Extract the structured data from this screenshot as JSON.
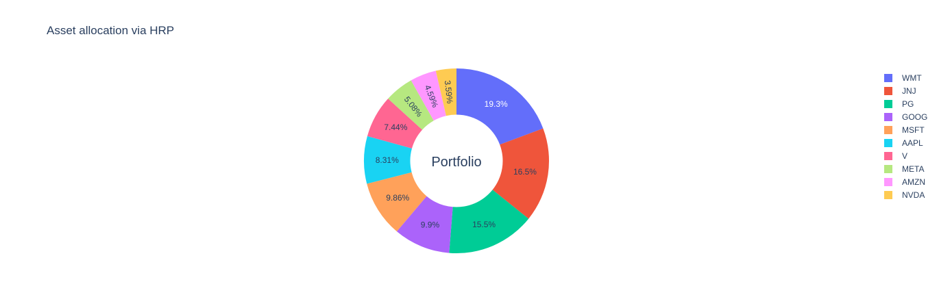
{
  "chart_data": {
    "type": "pie",
    "title": "Asset allocation via HRP",
    "center_label": "Portfolio",
    "hole": 0.5,
    "sort": "clockwise-from-top",
    "legend_position": "right",
    "slices": [
      {
        "label": "WMT",
        "value": 19.3,
        "text": "19.3%",
        "color": "#636efa",
        "text_color": "#ffffff"
      },
      {
        "label": "JNJ",
        "value": 16.5,
        "text": "16.5%",
        "color": "#EF553B",
        "text_color": "#2a3f5f"
      },
      {
        "label": "PG",
        "value": 15.5,
        "text": "15.5%",
        "color": "#00cc96",
        "text_color": "#2a3f5f"
      },
      {
        "label": "GOOG",
        "value": 9.9,
        "text": "9.9%",
        "color": "#ab63fa",
        "text_color": "#2a3f5f"
      },
      {
        "label": "MSFT",
        "value": 9.86,
        "text": "9.86%",
        "color": "#FFA15A",
        "text_color": "#2a3f5f"
      },
      {
        "label": "AAPL",
        "value": 8.31,
        "text": "8.31%",
        "color": "#19d3f3",
        "text_color": "#2a3f5f"
      },
      {
        "label": "V",
        "value": 7.44,
        "text": "7.44%",
        "color": "#FF6692",
        "text_color": "#2a3f5f"
      },
      {
        "label": "META",
        "value": 5.08,
        "text": "5.08%",
        "color": "#B6E880",
        "text_color": "#2a3f5f"
      },
      {
        "label": "AMZN",
        "value": 4.59,
        "text": "4.59%",
        "color": "#FF97FF",
        "text_color": "#2a3f5f"
      },
      {
        "label": "NVDA",
        "value": 3.59,
        "text": "3.59%",
        "color": "#FECB52",
        "text_color": "#2a3f5f"
      }
    ]
  }
}
